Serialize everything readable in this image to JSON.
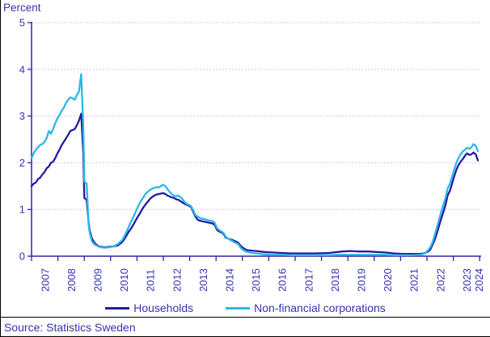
{
  "chart_data": {
    "type": "line",
    "title": "",
    "ylabel": "Percent",
    "xlabel": "",
    "ylim": [
      0,
      5
    ],
    "yticks": [
      0,
      1,
      2,
      3,
      4,
      5
    ],
    "xtick_labels": [
      "2007",
      "2008",
      "2009",
      "2010",
      "2011",
      "2012",
      "2013",
      "2014",
      "2015",
      "2016",
      "2017",
      "2018",
      "2019",
      "2020",
      "2021",
      "2022",
      "2023",
      "2024"
    ],
    "grid": "horizontal-dashed",
    "legend_position": "bottom",
    "series": [
      {
        "name": "Households",
        "color": "#231DA0",
        "points": [
          [
            2007.0,
            1.5
          ],
          [
            2007.08,
            1.55
          ],
          [
            2007.17,
            1.58
          ],
          [
            2007.25,
            1.65
          ],
          [
            2007.33,
            1.68
          ],
          [
            2007.42,
            1.75
          ],
          [
            2007.5,
            1.8
          ],
          [
            2007.58,
            1.88
          ],
          [
            2007.67,
            1.92
          ],
          [
            2007.75,
            2.0
          ],
          [
            2007.83,
            2.02
          ],
          [
            2007.92,
            2.1
          ],
          [
            2008.0,
            2.2
          ],
          [
            2008.08,
            2.28
          ],
          [
            2008.17,
            2.38
          ],
          [
            2008.25,
            2.45
          ],
          [
            2008.33,
            2.52
          ],
          [
            2008.42,
            2.6
          ],
          [
            2008.5,
            2.68
          ],
          [
            2008.58,
            2.7
          ],
          [
            2008.67,
            2.72
          ],
          [
            2008.75,
            2.8
          ],
          [
            2008.83,
            2.9
          ],
          [
            2008.92,
            3.05
          ],
          [
            2009.0,
            2.2
          ],
          [
            2009.04,
            1.25
          ],
          [
            2009.13,
            1.2
          ],
          [
            2009.21,
            0.7
          ],
          [
            2009.25,
            0.55
          ],
          [
            2009.33,
            0.38
          ],
          [
            2009.42,
            0.3
          ],
          [
            2009.5,
            0.25
          ],
          [
            2009.58,
            0.22
          ],
          [
            2009.67,
            0.2
          ],
          [
            2009.83,
            0.19
          ],
          [
            2010.0,
            0.2
          ],
          [
            2010.17,
            0.21
          ],
          [
            2010.33,
            0.23
          ],
          [
            2010.5,
            0.3
          ],
          [
            2010.58,
            0.36
          ],
          [
            2010.67,
            0.44
          ],
          [
            2010.75,
            0.52
          ],
          [
            2010.83,
            0.58
          ],
          [
            2010.92,
            0.66
          ],
          [
            2011.0,
            0.74
          ],
          [
            2011.08,
            0.82
          ],
          [
            2011.17,
            0.9
          ],
          [
            2011.25,
            0.98
          ],
          [
            2011.33,
            1.05
          ],
          [
            2011.42,
            1.12
          ],
          [
            2011.5,
            1.17
          ],
          [
            2011.58,
            1.23
          ],
          [
            2011.67,
            1.27
          ],
          [
            2011.75,
            1.3
          ],
          [
            2011.83,
            1.32
          ],
          [
            2011.92,
            1.33
          ],
          [
            2012.0,
            1.34
          ],
          [
            2012.08,
            1.35
          ],
          [
            2012.17,
            1.33
          ],
          [
            2012.25,
            1.3
          ],
          [
            2012.33,
            1.28
          ],
          [
            2012.42,
            1.26
          ],
          [
            2012.5,
            1.25
          ],
          [
            2012.58,
            1.22
          ],
          [
            2012.67,
            1.21
          ],
          [
            2012.75,
            1.18
          ],
          [
            2012.83,
            1.15
          ],
          [
            2012.92,
            1.12
          ],
          [
            2013.0,
            1.1
          ],
          [
            2013.08,
            1.08
          ],
          [
            2013.17,
            1.05
          ],
          [
            2013.25,
            0.95
          ],
          [
            2013.33,
            0.85
          ],
          [
            2013.42,
            0.78
          ],
          [
            2013.5,
            0.76
          ],
          [
            2013.58,
            0.75
          ],
          [
            2013.67,
            0.74
          ],
          [
            2013.75,
            0.73
          ],
          [
            2013.83,
            0.72
          ],
          [
            2013.92,
            0.71
          ],
          [
            2014.0,
            0.7
          ],
          [
            2014.08,
            0.67
          ],
          [
            2014.17,
            0.56
          ],
          [
            2014.25,
            0.53
          ],
          [
            2014.33,
            0.51
          ],
          [
            2014.42,
            0.48
          ],
          [
            2014.5,
            0.4
          ],
          [
            2014.58,
            0.38
          ],
          [
            2014.67,
            0.36
          ],
          [
            2014.75,
            0.35
          ],
          [
            2014.83,
            0.33
          ],
          [
            2014.92,
            0.31
          ],
          [
            2015.0,
            0.28
          ],
          [
            2015.08,
            0.22
          ],
          [
            2015.17,
            0.18
          ],
          [
            2015.25,
            0.15
          ],
          [
            2015.33,
            0.13
          ],
          [
            2015.5,
            0.12
          ],
          [
            2015.67,
            0.11
          ],
          [
            2015.83,
            0.1
          ],
          [
            2016.0,
            0.09
          ],
          [
            2016.33,
            0.08
          ],
          [
            2016.67,
            0.07
          ],
          [
            2017.0,
            0.06
          ],
          [
            2017.5,
            0.06
          ],
          [
            2018.0,
            0.06
          ],
          [
            2018.5,
            0.07
          ],
          [
            2018.83,
            0.09
          ],
          [
            2019.0,
            0.1
          ],
          [
            2019.33,
            0.11
          ],
          [
            2019.67,
            0.1
          ],
          [
            2020.0,
            0.1
          ],
          [
            2020.33,
            0.09
          ],
          [
            2020.67,
            0.08
          ],
          [
            2021.0,
            0.06
          ],
          [
            2021.33,
            0.05
          ],
          [
            2021.67,
            0.05
          ],
          [
            2022.0,
            0.05
          ],
          [
            2022.17,
            0.06
          ],
          [
            2022.33,
            0.1
          ],
          [
            2022.42,
            0.15
          ],
          [
            2022.5,
            0.25
          ],
          [
            2022.58,
            0.35
          ],
          [
            2022.67,
            0.5
          ],
          [
            2022.75,
            0.65
          ],
          [
            2022.83,
            0.8
          ],
          [
            2022.92,
            0.95
          ],
          [
            2023.0,
            1.1
          ],
          [
            2023.08,
            1.3
          ],
          [
            2023.17,
            1.4
          ],
          [
            2023.25,
            1.55
          ],
          [
            2023.33,
            1.7
          ],
          [
            2023.42,
            1.85
          ],
          [
            2023.5,
            1.95
          ],
          [
            2023.58,
            2.02
          ],
          [
            2023.67,
            2.08
          ],
          [
            2023.75,
            2.15
          ],
          [
            2023.83,
            2.2
          ],
          [
            2023.92,
            2.17
          ],
          [
            2024.0,
            2.18
          ],
          [
            2024.08,
            2.22
          ],
          [
            2024.17,
            2.18
          ],
          [
            2024.25,
            2.05
          ]
        ]
      },
      {
        "name": "Non-financial corporations",
        "color": "#2BB7EA",
        "points": [
          [
            2007.0,
            2.1
          ],
          [
            2007.08,
            2.2
          ],
          [
            2007.17,
            2.28
          ],
          [
            2007.25,
            2.33
          ],
          [
            2007.33,
            2.38
          ],
          [
            2007.42,
            2.4
          ],
          [
            2007.5,
            2.45
          ],
          [
            2007.58,
            2.52
          ],
          [
            2007.67,
            2.68
          ],
          [
            2007.75,
            2.62
          ],
          [
            2007.83,
            2.72
          ],
          [
            2007.92,
            2.85
          ],
          [
            2008.0,
            2.95
          ],
          [
            2008.08,
            3.02
          ],
          [
            2008.17,
            3.12
          ],
          [
            2008.25,
            3.18
          ],
          [
            2008.33,
            3.28
          ],
          [
            2008.42,
            3.35
          ],
          [
            2008.5,
            3.4
          ],
          [
            2008.58,
            3.38
          ],
          [
            2008.67,
            3.35
          ],
          [
            2008.75,
            3.45
          ],
          [
            2008.83,
            3.52
          ],
          [
            2008.92,
            3.9
          ],
          [
            2009.0,
            2.8
          ],
          [
            2009.04,
            1.6
          ],
          [
            2009.13,
            1.55
          ],
          [
            2009.21,
            0.65
          ],
          [
            2009.25,
            0.5
          ],
          [
            2009.33,
            0.32
          ],
          [
            2009.42,
            0.26
          ],
          [
            2009.5,
            0.23
          ],
          [
            2009.58,
            0.21
          ],
          [
            2009.67,
            0.19
          ],
          [
            2009.83,
            0.18
          ],
          [
            2010.0,
            0.19
          ],
          [
            2010.17,
            0.21
          ],
          [
            2010.33,
            0.26
          ],
          [
            2010.5,
            0.34
          ],
          [
            2010.58,
            0.42
          ],
          [
            2010.67,
            0.52
          ],
          [
            2010.75,
            0.62
          ],
          [
            2010.83,
            0.72
          ],
          [
            2010.92,
            0.82
          ],
          [
            2011.0,
            0.92
          ],
          [
            2011.08,
            1.02
          ],
          [
            2011.17,
            1.12
          ],
          [
            2011.25,
            1.2
          ],
          [
            2011.33,
            1.27
          ],
          [
            2011.42,
            1.34
          ],
          [
            2011.5,
            1.38
          ],
          [
            2011.58,
            1.42
          ],
          [
            2011.67,
            1.45
          ],
          [
            2011.75,
            1.46
          ],
          [
            2011.83,
            1.48
          ],
          [
            2011.92,
            1.47
          ],
          [
            2012.0,
            1.5
          ],
          [
            2012.08,
            1.53
          ],
          [
            2012.17,
            1.5
          ],
          [
            2012.25,
            1.44
          ],
          [
            2012.33,
            1.38
          ],
          [
            2012.42,
            1.33
          ],
          [
            2012.5,
            1.3
          ],
          [
            2012.58,
            1.28
          ],
          [
            2012.67,
            1.3
          ],
          [
            2012.75,
            1.27
          ],
          [
            2012.83,
            1.22
          ],
          [
            2012.92,
            1.16
          ],
          [
            2013.0,
            1.12
          ],
          [
            2013.08,
            1.1
          ],
          [
            2013.17,
            1.07
          ],
          [
            2013.25,
            0.98
          ],
          [
            2013.33,
            0.88
          ],
          [
            2013.42,
            0.85
          ],
          [
            2013.5,
            0.82
          ],
          [
            2013.58,
            0.8
          ],
          [
            2013.67,
            0.8
          ],
          [
            2013.75,
            0.78
          ],
          [
            2013.83,
            0.77
          ],
          [
            2013.92,
            0.76
          ],
          [
            2014.0,
            0.75
          ],
          [
            2014.08,
            0.71
          ],
          [
            2014.17,
            0.6
          ],
          [
            2014.25,
            0.56
          ],
          [
            2014.33,
            0.53
          ],
          [
            2014.42,
            0.5
          ],
          [
            2014.5,
            0.42
          ],
          [
            2014.58,
            0.38
          ],
          [
            2014.67,
            0.35
          ],
          [
            2014.75,
            0.33
          ],
          [
            2014.83,
            0.3
          ],
          [
            2014.92,
            0.28
          ],
          [
            2015.0,
            0.25
          ],
          [
            2015.08,
            0.18
          ],
          [
            2015.17,
            0.14
          ],
          [
            2015.25,
            0.11
          ],
          [
            2015.33,
            0.09
          ],
          [
            2015.5,
            0.07
          ],
          [
            2015.67,
            0.06
          ],
          [
            2015.83,
            0.05
          ],
          [
            2016.0,
            0.04
          ],
          [
            2016.33,
            0.03
          ],
          [
            2016.67,
            0.03
          ],
          [
            2017.0,
            0.02
          ],
          [
            2017.5,
            0.02
          ],
          [
            2018.0,
            0.02
          ],
          [
            2018.5,
            0.02
          ],
          [
            2018.83,
            0.03
          ],
          [
            2019.0,
            0.03
          ],
          [
            2019.33,
            0.03
          ],
          [
            2019.67,
            0.03
          ],
          [
            2020.0,
            0.03
          ],
          [
            2020.33,
            0.03
          ],
          [
            2020.67,
            0.03
          ],
          [
            2021.0,
            0.02
          ],
          [
            2021.33,
            0.02
          ],
          [
            2021.67,
            0.02
          ],
          [
            2022.0,
            0.03
          ],
          [
            2022.17,
            0.05
          ],
          [
            2022.33,
            0.13
          ],
          [
            2022.42,
            0.2
          ],
          [
            2022.5,
            0.3
          ],
          [
            2022.58,
            0.45
          ],
          [
            2022.67,
            0.62
          ],
          [
            2022.75,
            0.78
          ],
          [
            2022.83,
            0.95
          ],
          [
            2022.92,
            1.1
          ],
          [
            2023.0,
            1.25
          ],
          [
            2023.08,
            1.45
          ],
          [
            2023.17,
            1.55
          ],
          [
            2023.25,
            1.7
          ],
          [
            2023.33,
            1.85
          ],
          [
            2023.42,
            2.0
          ],
          [
            2023.5,
            2.1
          ],
          [
            2023.58,
            2.18
          ],
          [
            2023.67,
            2.24
          ],
          [
            2023.75,
            2.28
          ],
          [
            2023.83,
            2.32
          ],
          [
            2023.92,
            2.3
          ],
          [
            2024.0,
            2.33
          ],
          [
            2024.08,
            2.4
          ],
          [
            2024.17,
            2.36
          ],
          [
            2024.25,
            2.25
          ]
        ]
      }
    ]
  },
  "legend": {
    "items": [
      {
        "label": "Households",
        "color": "#231DA0"
      },
      {
        "label": "Non-financial corporations",
        "color": "#2BB7EA"
      }
    ]
  },
  "footer": {
    "source": "Source: Statistics Sweden"
  },
  "colors": {
    "text": "#3733B3",
    "axis": "#2B26A4",
    "households": "#231DA0",
    "corporations": "#2BB7EA",
    "grid": "#C9C9E9",
    "frame_border": "#000000"
  }
}
